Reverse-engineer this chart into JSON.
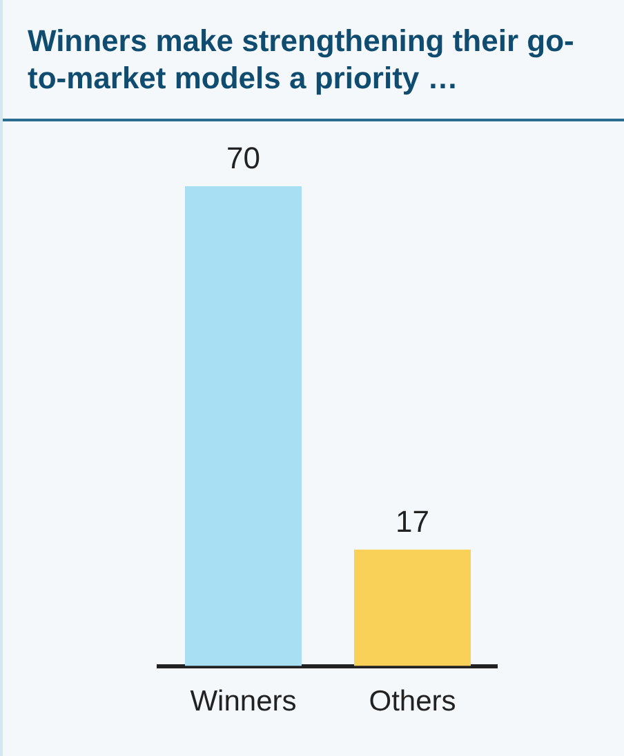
{
  "chart_data": {
    "type": "bar",
    "title": "Winners make strengthening their go-to-market models a priority …",
    "categories": [
      "Winners",
      "Others"
    ],
    "values": [
      70,
      17
    ],
    "colors": [
      "#a8dff2",
      "#f9d058"
    ],
    "data_labels": true,
    "grid": false,
    "legend": false
  }
}
